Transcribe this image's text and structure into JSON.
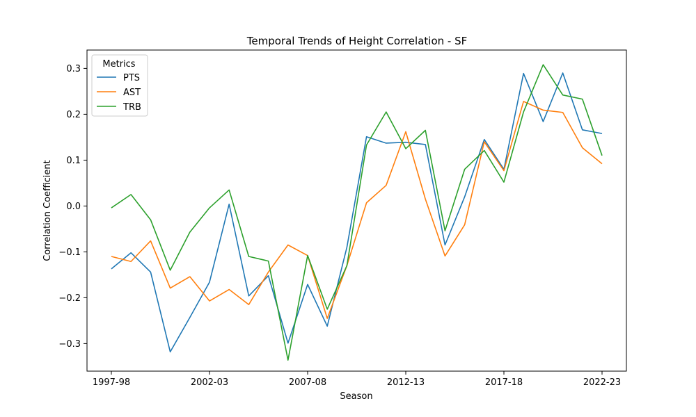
{
  "chart_data": {
    "type": "line",
    "title": "Temporal Trends of Height Correlation - SF",
    "xlabel": "Season",
    "ylabel": "Correlation Coefficient",
    "categories": [
      "1997-98",
      "1998-99",
      "1999-00",
      "2000-01",
      "2001-02",
      "2002-03",
      "2003-04",
      "2004-05",
      "2005-06",
      "2006-07",
      "2007-08",
      "2008-09",
      "2009-10",
      "2010-11",
      "2011-12",
      "2012-13",
      "2013-14",
      "2014-15",
      "2015-16",
      "2016-17",
      "2017-18",
      "2018-19",
      "2019-20",
      "2020-21",
      "2021-22",
      "2022-23"
    ],
    "xticks": [
      "1997-98",
      "2002-03",
      "2007-08",
      "2012-13",
      "2017-18",
      "2022-23"
    ],
    "ylim": [
      -0.36,
      0.34
    ],
    "yticks": [
      -0.3,
      -0.2,
      -0.1,
      0.0,
      0.1,
      0.2,
      0.3
    ],
    "ytick_labels": [
      "−0.3",
      "−0.2",
      "−0.1",
      "0.0",
      "0.1",
      "0.2",
      "0.3"
    ],
    "grid": false,
    "legend": {
      "title": "Metrics",
      "placement": "upper-left"
    },
    "series": [
      {
        "name": "PTS",
        "color": "#1f77b4",
        "values": [
          -0.137,
          -0.102,
          -0.144,
          -0.318,
          -0.243,
          -0.166,
          0.004,
          -0.196,
          -0.152,
          -0.299,
          -0.171,
          -0.262,
          -0.09,
          0.151,
          0.137,
          0.139,
          0.134,
          -0.085,
          0.02,
          0.145,
          0.08,
          0.289,
          0.184,
          0.29,
          0.166,
          0.158
        ]
      },
      {
        "name": "AST",
        "color": "#ff7f0e",
        "values": [
          -0.11,
          -0.121,
          -0.076,
          -0.179,
          -0.154,
          -0.207,
          -0.182,
          -0.215,
          -0.144,
          -0.085,
          -0.108,
          -0.245,
          -0.13,
          0.007,
          0.045,
          0.162,
          0.015,
          -0.109,
          -0.041,
          0.14,
          0.077,
          0.228,
          0.209,
          0.204,
          0.127,
          0.092
        ]
      },
      {
        "name": "TRB",
        "color": "#2ca02c",
        "values": [
          -0.004,
          0.025,
          -0.03,
          -0.14,
          -0.057,
          -0.004,
          0.035,
          -0.11,
          -0.12,
          -0.336,
          -0.108,
          -0.225,
          -0.13,
          0.133,
          0.205,
          0.125,
          0.165,
          -0.054,
          0.08,
          0.121,
          0.052,
          0.205,
          0.308,
          0.242,
          0.233,
          0.11
        ]
      }
    ]
  }
}
